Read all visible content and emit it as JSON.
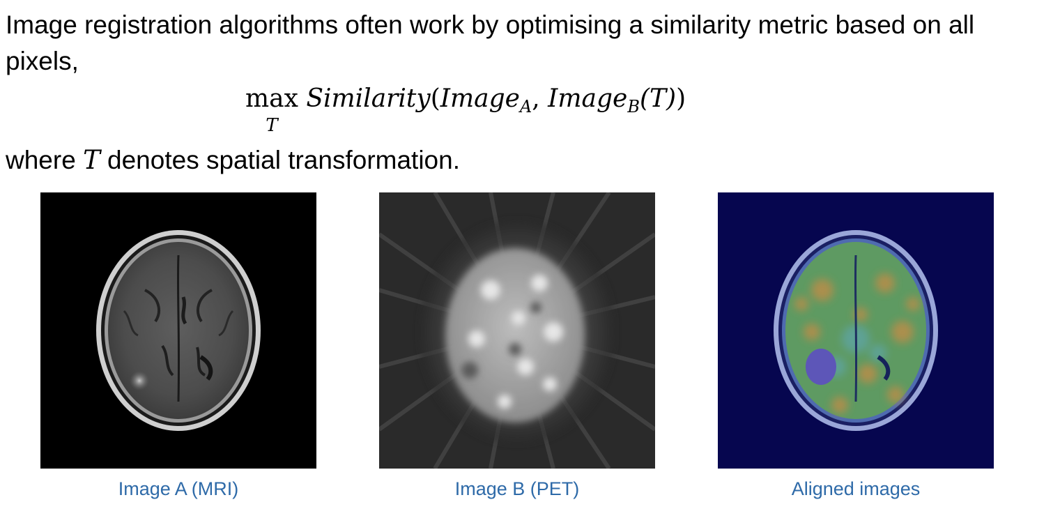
{
  "text": {
    "intro": "Image registration algorithms often work by optimising a similarity metric based on all pixels,",
    "formula": {
      "max": "max",
      "max_sub": "T",
      "func": "Similarity",
      "open": "(",
      "arg_a": "Image",
      "arg_a_sub": "A",
      "comma": ", ",
      "arg_b": "Image",
      "arg_b_sub": "B",
      "arg_b_param": "(T)",
      "close": ")"
    },
    "where_before": "where ",
    "where_var": "T",
    "where_after": " denotes spatial transformation."
  },
  "panels": [
    {
      "caption": "Image A (MRI)",
      "background": "#000000"
    },
    {
      "caption": "Image B (PET)",
      "background": "#2a2a2a"
    },
    {
      "caption": "Aligned images",
      "background": "#06064f"
    }
  ],
  "colors": {
    "caption": "#2e6aa8",
    "overlay_green": "#5e9a62",
    "overlay_orange": "#b98d4a",
    "overlay_tumor": "#5d56b8"
  }
}
